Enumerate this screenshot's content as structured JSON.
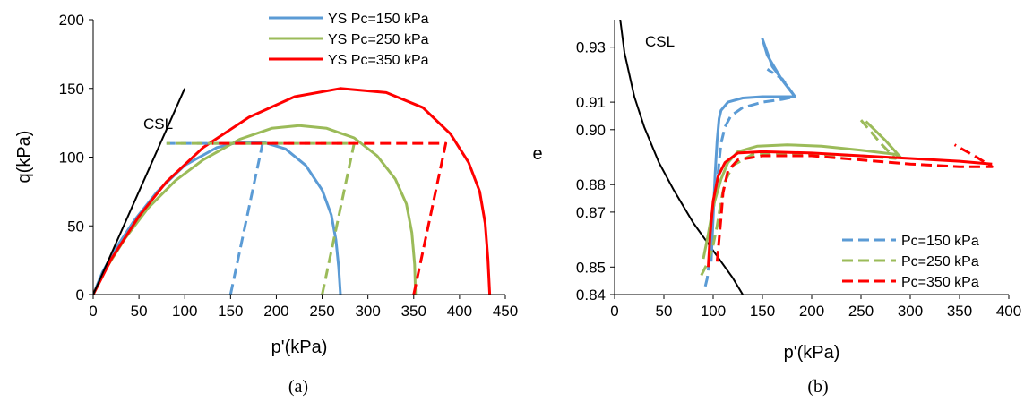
{
  "colors": {
    "blue": "#5b9bd5",
    "green": "#9bbb59",
    "red": "#ff0000",
    "black": "#000000"
  },
  "chart_data": [
    {
      "panel": "(a)",
      "type": "line",
      "title": "",
      "xlabel": "p'(kPa)",
      "ylabel": "q(kPa)",
      "xlim": [
        0,
        450
      ],
      "ylim": [
        0,
        200
      ],
      "xticks": [
        0,
        50,
        100,
        150,
        200,
        250,
        300,
        350,
        400,
        450
      ],
      "yticks": [
        0,
        50,
        100,
        150,
        200
      ],
      "annotations": [
        {
          "text": "CSL"
        }
      ],
      "legend_position": "top-right",
      "legend": [
        {
          "name": "YS Pc=150 kPa",
          "color": "#5b9bd5",
          "style": "solid"
        },
        {
          "name": "YS Pc=250 kPa",
          "color": "#9bbb59",
          "style": "solid"
        },
        {
          "name": "YS Pc=350 kPa",
          "color": "#ff0000",
          "style": "solid"
        }
      ],
      "series": [
        {
          "name": "YS Pc=150 kPa",
          "color": "#5b9bd5",
          "style": "solid",
          "x": [
            0,
            10,
            25,
            45,
            70,
            100,
            135,
            160,
            185,
            210,
            232,
            250,
            260,
            265,
            268,
            270
          ],
          "y": [
            0,
            16,
            34,
            54,
            75,
            94,
            107,
            111,
            111,
            106,
            94,
            76,
            58,
            40,
            20,
            0
          ]
        },
        {
          "name": "YS Pc=250 kPa",
          "color": "#9bbb59",
          "style": "solid",
          "x": [
            0,
            15,
            35,
            60,
            90,
            120,
            160,
            195,
            225,
            255,
            285,
            310,
            330,
            342,
            348,
            351,
            352
          ],
          "y": [
            0,
            20,
            41,
            63,
            83,
            98,
            113,
            121,
            123,
            121,
            114,
            101,
            84,
            66,
            45,
            22,
            0
          ]
        },
        {
          "name": "YS Pc=350 kPa",
          "color": "#ff0000",
          "style": "solid",
          "x": [
            0,
            20,
            50,
            80,
            120,
            170,
            220,
            270,
            320,
            360,
            390,
            410,
            422,
            428,
            431,
            433
          ],
          "y": [
            0,
            26,
            57,
            82,
            107,
            129,
            144,
            150,
            147,
            136,
            117,
            96,
            75,
            52,
            26,
            0
          ]
        },
        {
          "name": "",
          "color": "#000000",
          "style": "solid",
          "x": [
            0,
            100
          ],
          "y": [
            0,
            150
          ]
        },
        {
          "name": "",
          "color": "#5b9bd5",
          "style": "dashed",
          "x": [
            150,
            185,
            80
          ],
          "y": [
            0,
            110,
            110
          ]
        },
        {
          "name": "",
          "color": "#9bbb59",
          "style": "dashed",
          "x": [
            250,
            285,
            80
          ],
          "y": [
            0,
            110,
            110
          ]
        },
        {
          "name": "",
          "color": "#ff0000",
          "style": "dashed",
          "x": [
            350,
            385,
            130
          ],
          "y": [
            0,
            110,
            110
          ]
        }
      ]
    },
    {
      "panel": "(b)",
      "type": "line",
      "title": "",
      "xlabel": "p'(kPa)",
      "ylabel": "e",
      "xlim": [
        0,
        400
      ],
      "ylim": [
        0.84,
        0.94
      ],
      "xticks": [
        0,
        50,
        100,
        150,
        200,
        250,
        300,
        350,
        400
      ],
      "yticks": [
        "0.84",
        "0.85",
        "0.87",
        "0.88",
        "0.90",
        "0.91",
        "0.93"
      ],
      "ytick_values": [
        0.84,
        0.85,
        0.87,
        0.88,
        0.9,
        0.91,
        0.93
      ],
      "annotations": [
        {
          "text": "CSL"
        }
      ],
      "legend_position": "bottom-right",
      "legend": [
        {
          "name": "Pc=150 kPa",
          "color": "#5b9bd5",
          "style": "dashed"
        },
        {
          "name": "Pc=250 kPa",
          "color": "#9bbb59",
          "style": "dashed"
        },
        {
          "name": "Pc=350 kPa",
          "color": "#ff0000",
          "style": "dashed"
        }
      ],
      "series": [
        {
          "name": "",
          "color": "#000000",
          "style": "solid",
          "x": [
            5,
            10,
            20,
            30,
            45,
            60,
            80,
            100,
            120,
            130
          ],
          "y": [
            0.942,
            0.928,
            0.912,
            0.901,
            0.888,
            0.878,
            0.866,
            0.856,
            0.846,
            0.84
          ]
        },
        {
          "name": "",
          "color": "#5b9bd5",
          "style": "solid",
          "x": [
            98,
            100,
            102,
            104,
            106,
            108,
            115,
            130,
            150,
            170,
            183,
            170,
            155,
            150,
            160,
            183
          ],
          "y": [
            0.852,
            0.868,
            0.884,
            0.896,
            0.904,
            0.907,
            0.91,
            0.9115,
            0.912,
            0.912,
            0.912,
            0.918,
            0.927,
            0.933,
            0.923,
            0.912
          ]
        },
        {
          "name": "Pc=150 kPa",
          "color": "#5b9bd5",
          "style": "dashed",
          "x": [
            92,
            94,
            96,
            98,
            100,
            102,
            104,
            106,
            108,
            112,
            118,
            130,
            150,
            170,
            183,
            170,
            155
          ],
          "y": [
            0.843,
            0.846,
            0.852,
            0.861,
            0.87,
            0.876,
            0.881,
            0.888,
            0.895,
            0.901,
            0.905,
            0.908,
            0.91,
            0.911,
            0.912,
            0.9185,
            0.922
          ]
        },
        {
          "name": "",
          "color": "#9bbb59",
          "style": "solid",
          "x": [
            90,
            95,
            100,
            108,
            115,
            125,
            145,
            175,
            210,
            250,
            285,
            290,
            275,
            255
          ],
          "y": [
            0.853,
            0.862,
            0.872,
            0.882,
            0.888,
            0.892,
            0.894,
            0.8945,
            0.894,
            0.8925,
            0.891,
            0.89,
            0.896,
            0.903
          ]
        },
        {
          "name": "Pc=250 kPa",
          "color": "#9bbb59",
          "style": "dashed",
          "x": [
            88,
            95,
            100,
            104,
            108,
            112,
            120,
            140,
            170,
            210,
            250,
            285,
            270,
            250
          ],
          "y": [
            0.847,
            0.852,
            0.858,
            0.865,
            0.874,
            0.881,
            0.887,
            0.891,
            0.8915,
            0.891,
            0.8905,
            0.8895,
            0.895,
            0.9035
          ]
        },
        {
          "name": "",
          "color": "#ff0000",
          "style": "solid",
          "x": [
            95,
            97,
            100,
            105,
            112,
            125,
            150,
            200,
            250,
            300,
            350,
            383
          ],
          "y": [
            0.85,
            0.862,
            0.874,
            0.883,
            0.888,
            0.8915,
            0.892,
            0.8915,
            0.8905,
            0.8895,
            0.8885,
            0.8875
          ]
        },
        {
          "name": "Pc=350 kPa",
          "color": "#ff0000",
          "style": "dashed",
          "x": [
            104,
            106,
            108,
            110,
            115,
            125,
            150,
            200,
            250,
            300,
            350,
            383,
            365,
            345
          ],
          "y": [
            0.852,
            0.86,
            0.868,
            0.877,
            0.885,
            0.889,
            0.8905,
            0.8905,
            0.889,
            0.8875,
            0.8865,
            0.8865,
            0.8905,
            0.8945
          ]
        }
      ]
    }
  ],
  "captions": [
    "(a)",
    "(b)"
  ]
}
